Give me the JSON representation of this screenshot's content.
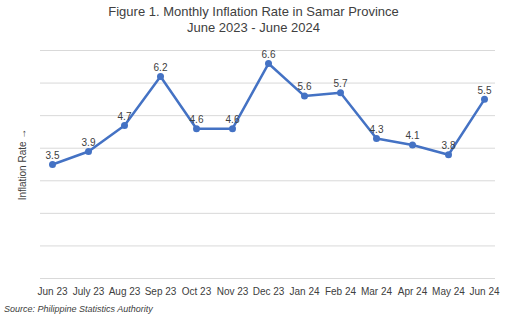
{
  "chart_data": {
    "type": "line",
    "title": "Figure 1. Monthly Inflation Rate in Samar Province",
    "subtitle": "June 2023 - June 2024",
    "y_label": "Inflation Rate",
    "caption": "Source: Philippine Statistics Authority",
    "categories": [
      "Jun 23",
      "July 23",
      "Aug 23",
      "Sep 23",
      "Oct 23",
      "Nov 23",
      "Dec 23",
      "Jan 24",
      "Feb 24",
      "Mar 24",
      "Apr 24",
      "May 24",
      "Jun 24"
    ],
    "values": [
      3.5,
      3.9,
      4.7,
      6.2,
      4.6,
      4.6,
      6.6,
      5.6,
      5.7,
      4.3,
      4.1,
      3.8,
      5.5
    ],
    "color": "#4472c4",
    "marker": "circle",
    "data_labels": true,
    "ylim": [
      0,
      7
    ],
    "yticks": [
      0,
      1,
      2,
      3,
      4,
      5,
      6,
      7
    ],
    "grid": true,
    "tick_labels": "x"
  }
}
